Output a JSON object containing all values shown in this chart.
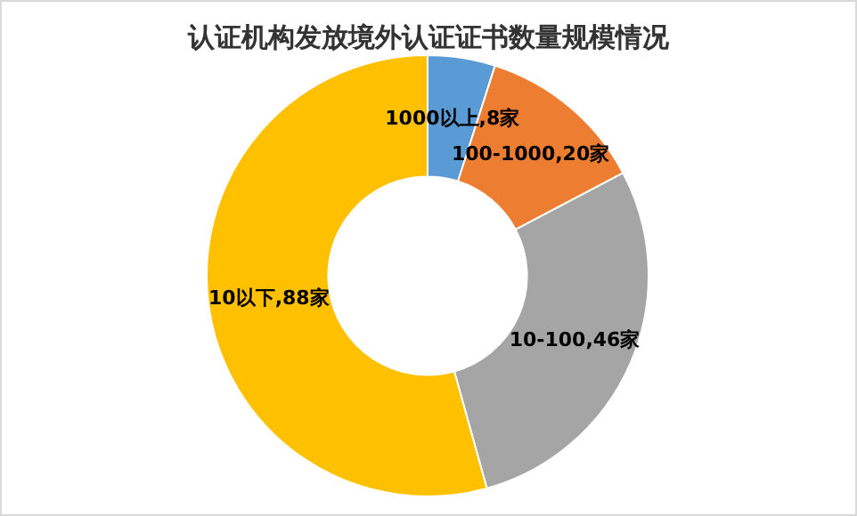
{
  "chart_data": {
    "type": "donut",
    "title": "认证机构发放境外认证证书数量规模情况",
    "categories": [
      "1000以上",
      "100-1000",
      "10-100",
      "10以下"
    ],
    "values": [
      8,
      20,
      46,
      88
    ],
    "colors": [
      "#5b9bd5",
      "#ed7d31",
      "#a5a5a5",
      "#ffc000"
    ],
    "value_labels": [
      ",8家",
      ",20家",
      ",46家",
      ",88家"
    ],
    "legend": false
  }
}
